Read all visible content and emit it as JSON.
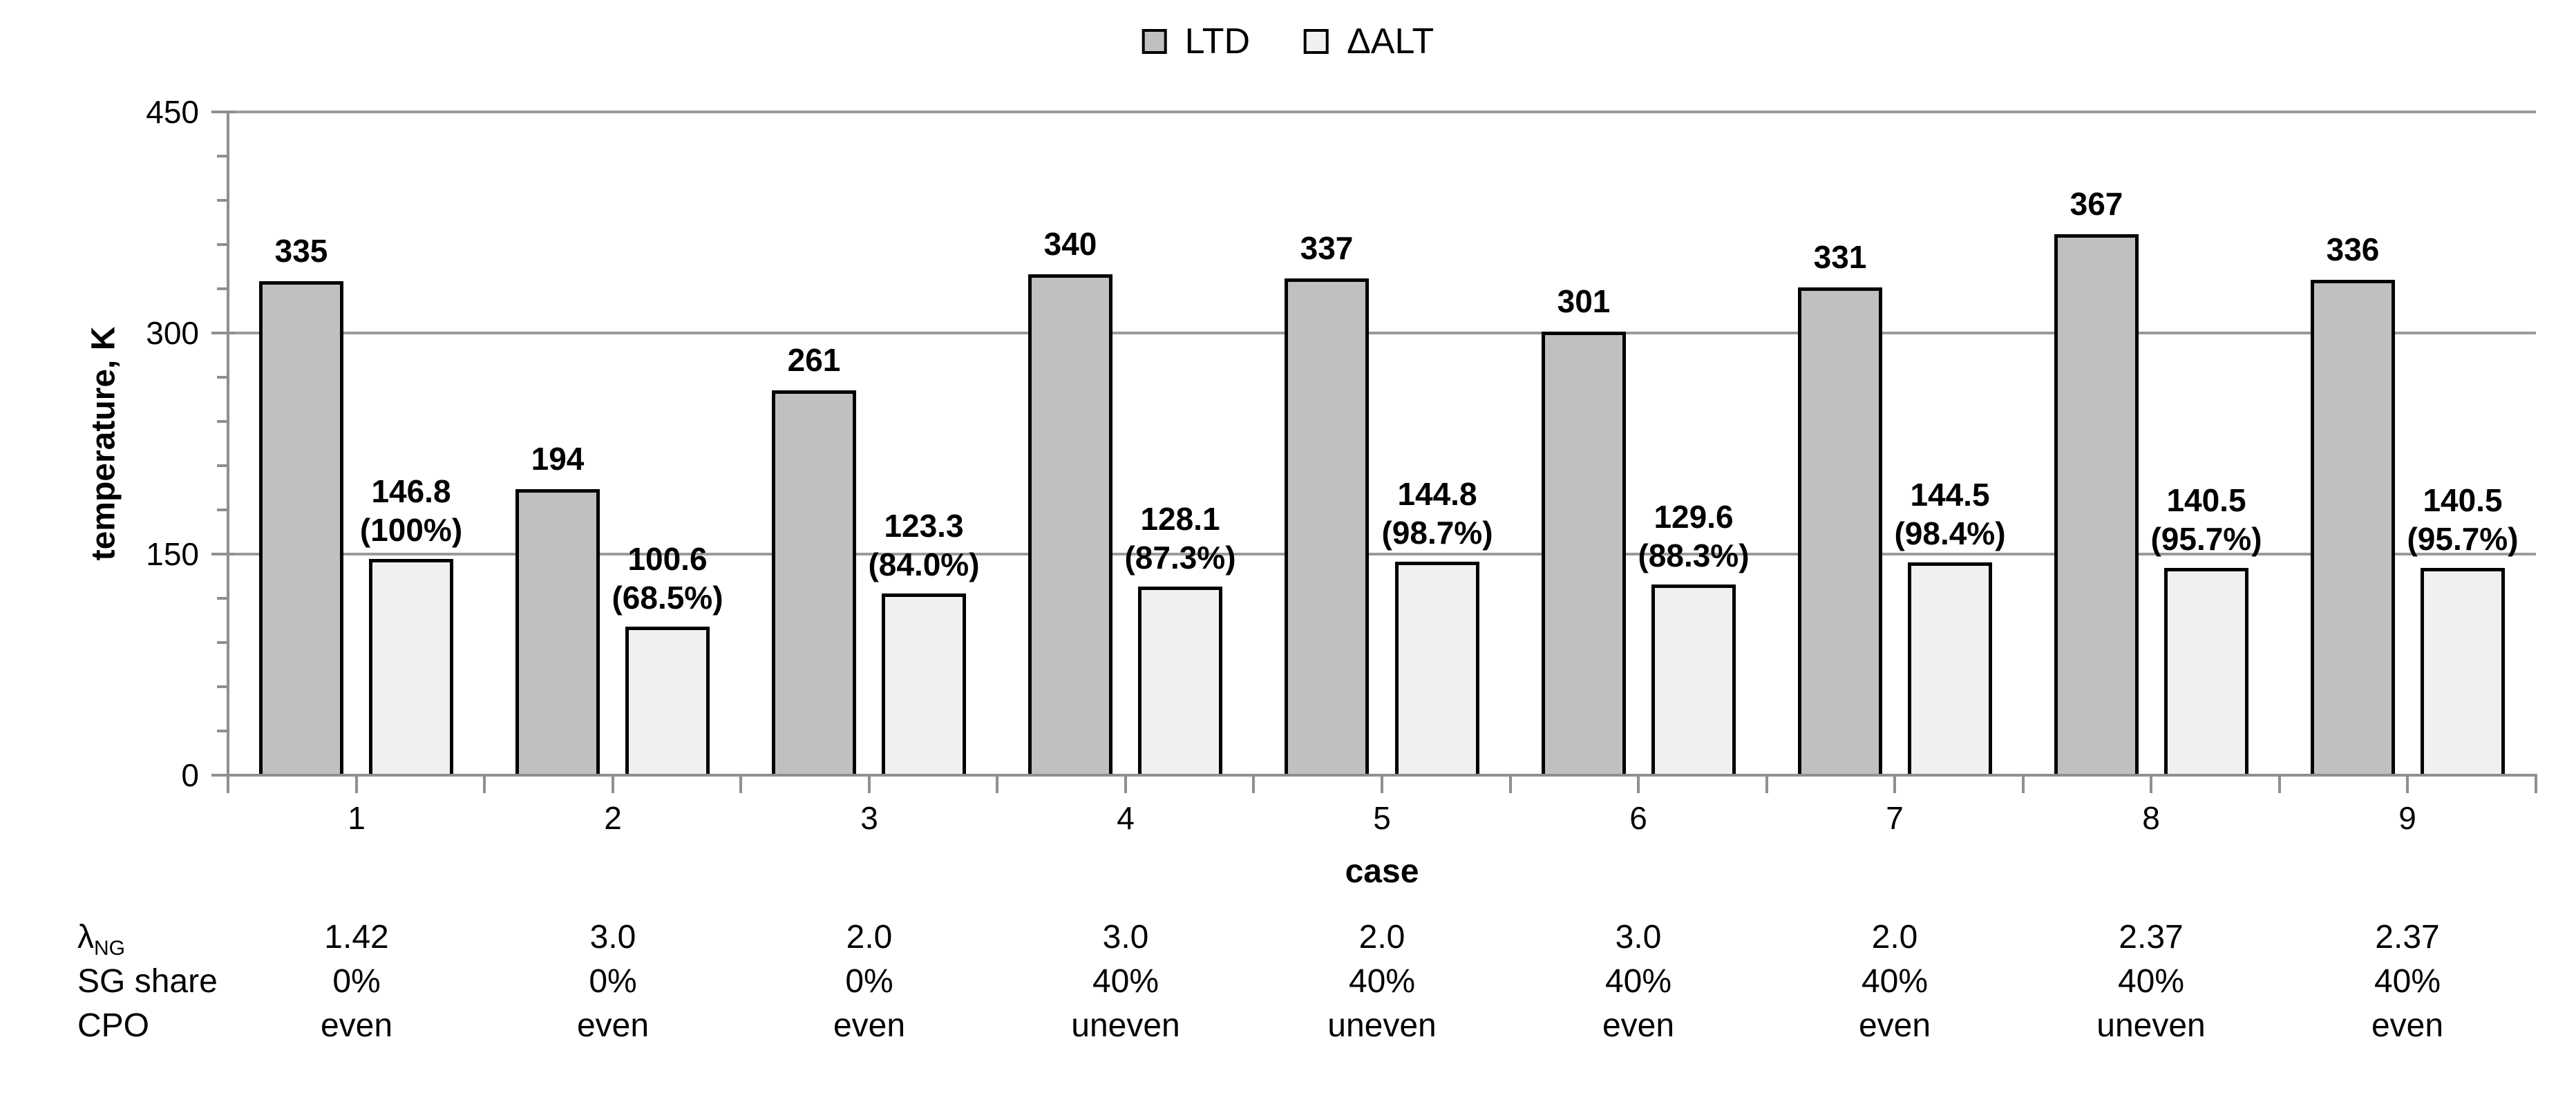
{
  "legend": {
    "items": [
      {
        "label": "LTD",
        "swatch_color": "#c0c0c0"
      },
      {
        "label": "ΔALT",
        "swatch_color": "#f0f0f0"
      }
    ],
    "position": "top-center"
  },
  "chart_data": {
    "type": "bar",
    "title": "",
    "categories": [
      "1",
      "2",
      "3",
      "4",
      "5",
      "6",
      "7",
      "8",
      "9"
    ],
    "series": [
      {
        "name": "LTD",
        "color": "#c0c0c0",
        "values": [
          335,
          194,
          261,
          340,
          337,
          301,
          331,
          367,
          336
        ],
        "data_labels": [
          "335",
          "194",
          "261",
          "340",
          "337",
          "301",
          "331",
          "367",
          "336"
        ]
      },
      {
        "name": "ΔALT",
        "color": "#f0f0f0",
        "values": [
          146.8,
          100.6,
          123.3,
          128.1,
          144.8,
          129.6,
          144.5,
          140.5,
          140.5
        ],
        "data_labels": [
          "146.8",
          "100.6",
          "123.3",
          "128.1",
          "144.8",
          "129.6",
          "144.5",
          "140.5",
          "140.5"
        ],
        "data_sublabels": [
          "(100%)",
          "(68.5%)",
          "(84.0%)",
          "(87.3%)",
          "(98.7%)",
          "(88.3%)",
          "(98.4%)",
          "(95.7%)",
          "(95.7%)"
        ]
      }
    ],
    "xlabel": "case",
    "ylabel": "temperature, K",
    "ylim": [
      0,
      450
    ],
    "yticks": [
      0,
      150,
      300,
      450
    ],
    "y_minor_tick_step": 30,
    "grid": "horizontal major gridlines at 150, 300, 450",
    "legend_position": "top-center",
    "bar_border_color": "#000000"
  },
  "case_table": {
    "rows": [
      {
        "label_base": "λ",
        "label_sub": "NG",
        "values": [
          "1.42",
          "3.0",
          "2.0",
          "3.0",
          "2.0",
          "3.0",
          "2.0",
          "2.37",
          "2.37"
        ]
      },
      {
        "label_base": "SG share",
        "label_sub": "",
        "values": [
          "0%",
          "0%",
          "0%",
          "40%",
          "40%",
          "40%",
          "40%",
          "40%",
          "40%"
        ]
      },
      {
        "label_base": "CPO",
        "label_sub": "",
        "values": [
          "even",
          "even",
          "even",
          "uneven",
          "uneven",
          "even",
          "even",
          "uneven",
          "even"
        ]
      }
    ]
  },
  "colors": {
    "background": "#ffffff",
    "ltd_fill": "#c0c0c0",
    "dalt_fill": "#f0f0f0",
    "bar_border": "#000000",
    "axis_line": "#8f8f8f",
    "gridline": "#9a9a9a",
    "text": "#000000"
  }
}
